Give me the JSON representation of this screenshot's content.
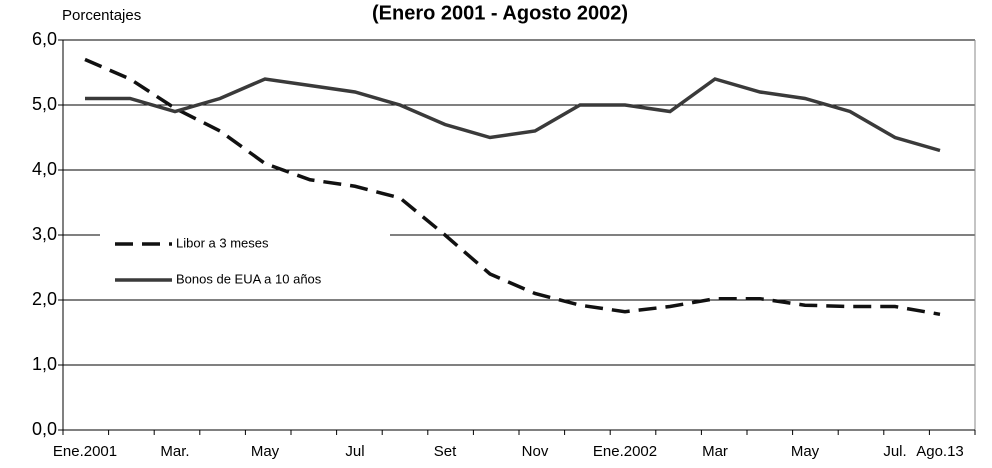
{
  "chart_data": {
    "type": "line",
    "title": "(Enero 2001 - Agosto 2002)",
    "y_label": "Porcentajes",
    "categories": [
      "Ene.2001",
      null,
      "Mar.",
      null,
      "May",
      null,
      "Jul",
      null,
      "Set",
      null,
      "Nov",
      null,
      "Ene.2002",
      null,
      "Mar",
      null,
      "May",
      null,
      "Jul.",
      "Ago.13"
    ],
    "series": [
      {
        "name": "Libor a 3 meses",
        "color": "#111111",
        "dash": true,
        "values": [
          5.7,
          5.4,
          4.95,
          4.6,
          4.1,
          3.85,
          3.75,
          3.57,
          3.0,
          2.4,
          2.1,
          1.92,
          1.82,
          1.9,
          2.02,
          2.02,
          1.92,
          1.9,
          1.9,
          1.78
        ]
      },
      {
        "name": "Bonos de EUA a 10 años",
        "color": "#3a3a3a",
        "dash": false,
        "values": [
          5.1,
          5.1,
          4.9,
          5.1,
          5.4,
          5.3,
          5.2,
          5.0,
          4.7,
          4.5,
          4.6,
          5.0,
          5.0,
          4.9,
          5.4,
          5.2,
          5.1,
          4.9,
          4.5,
          4.3
        ]
      }
    ],
    "ylim": [
      0,
      6
    ],
    "yticks": [
      {
        "value": 0,
        "label": "0,0"
      },
      {
        "value": 1,
        "label": "1,0"
      },
      {
        "value": 2,
        "label": "2,0"
      },
      {
        "value": 3,
        "label": "3,0"
      },
      {
        "value": 4,
        "label": "4,0"
      },
      {
        "value": 5,
        "label": "5,0"
      },
      {
        "value": 6,
        "label": "6,0"
      }
    ],
    "grid": true
  }
}
